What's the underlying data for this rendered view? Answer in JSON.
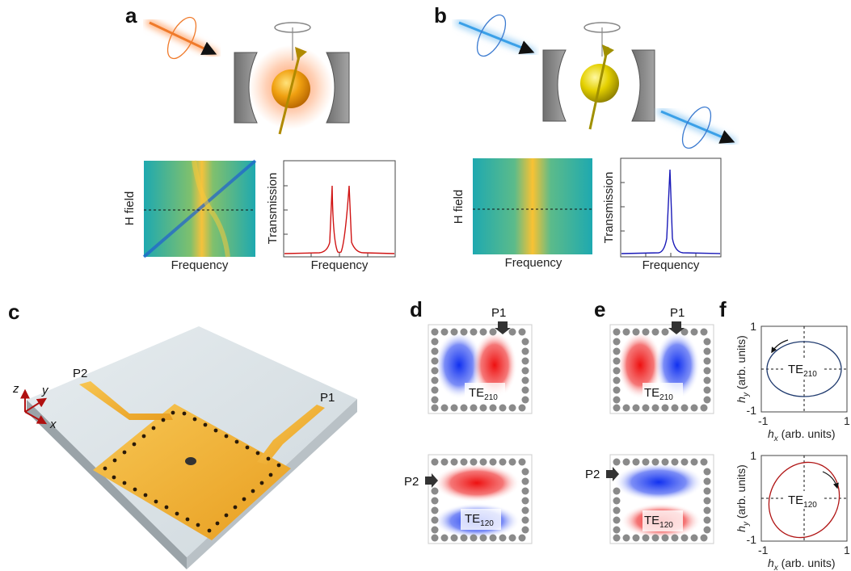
{
  "panel_labels": {
    "a": "a",
    "b": "b",
    "c": "c",
    "d": "d",
    "e": "e",
    "f": "f"
  },
  "spectra": {
    "h_field": "H field",
    "frequency": "Frequency",
    "transmission": "Transmission"
  },
  "ports": {
    "p1": "P1",
    "p2": "P2"
  },
  "axes3d": {
    "x": "x",
    "y": "y",
    "z": "z"
  },
  "modes": {
    "te210_main": "TE",
    "te210_sub": "210",
    "te120_main": "TE",
    "te120_sub": "120"
  },
  "polar": {
    "hx_main": "h",
    "hx_sub": "x",
    "hx_unit": " (arb. units)",
    "hy_main": "h",
    "hy_sub": "y",
    "hy_unit": " (arb. units)",
    "tick_pos": "1",
    "tick_neg": "-1"
  },
  "colors": {
    "orange": "#f07a2a",
    "blue_light": "#3aa0e8",
    "red_curve": "#d01414",
    "blue_curve": "#1a1ab8",
    "gold": "#f2b33a",
    "field_red": "#ee1c1c",
    "field_blue": "#1a3cf0"
  }
}
